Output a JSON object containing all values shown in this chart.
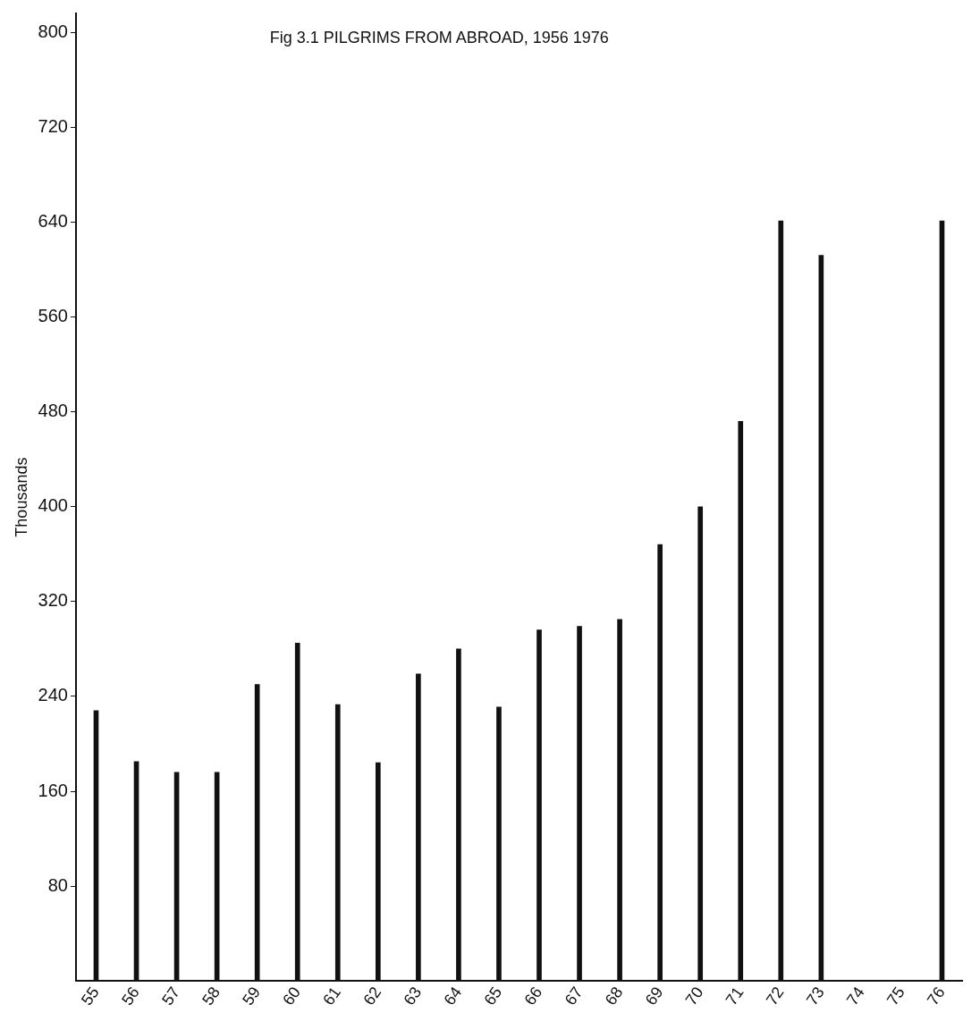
{
  "chart_data": {
    "type": "bar",
    "title": "Fig 3.1 PILGRIMS FROM ABROAD, 1956 1976",
    "ylabel": "Thousands",
    "categories": [
      "55",
      "56",
      "57",
      "58",
      "59",
      "60",
      "61",
      "62",
      "63",
      "64",
      "65",
      "66",
      "67",
      "68",
      "69",
      "70",
      "71",
      "72",
      "73",
      "74",
      "75",
      "76"
    ],
    "values": [
      228,
      185,
      176,
      176,
      250,
      285,
      233,
      184,
      259,
      280,
      231,
      296,
      299,
      305,
      368,
      400,
      472,
      641,
      612,
      null,
      null,
      641
    ],
    "color": "#111111",
    "ylim": [
      0,
      816
    ],
    "yticks": [
      80,
      160,
      240,
      320,
      400,
      480,
      560,
      640,
      720,
      800
    ],
    "grid": false,
    "legend": false
  }
}
